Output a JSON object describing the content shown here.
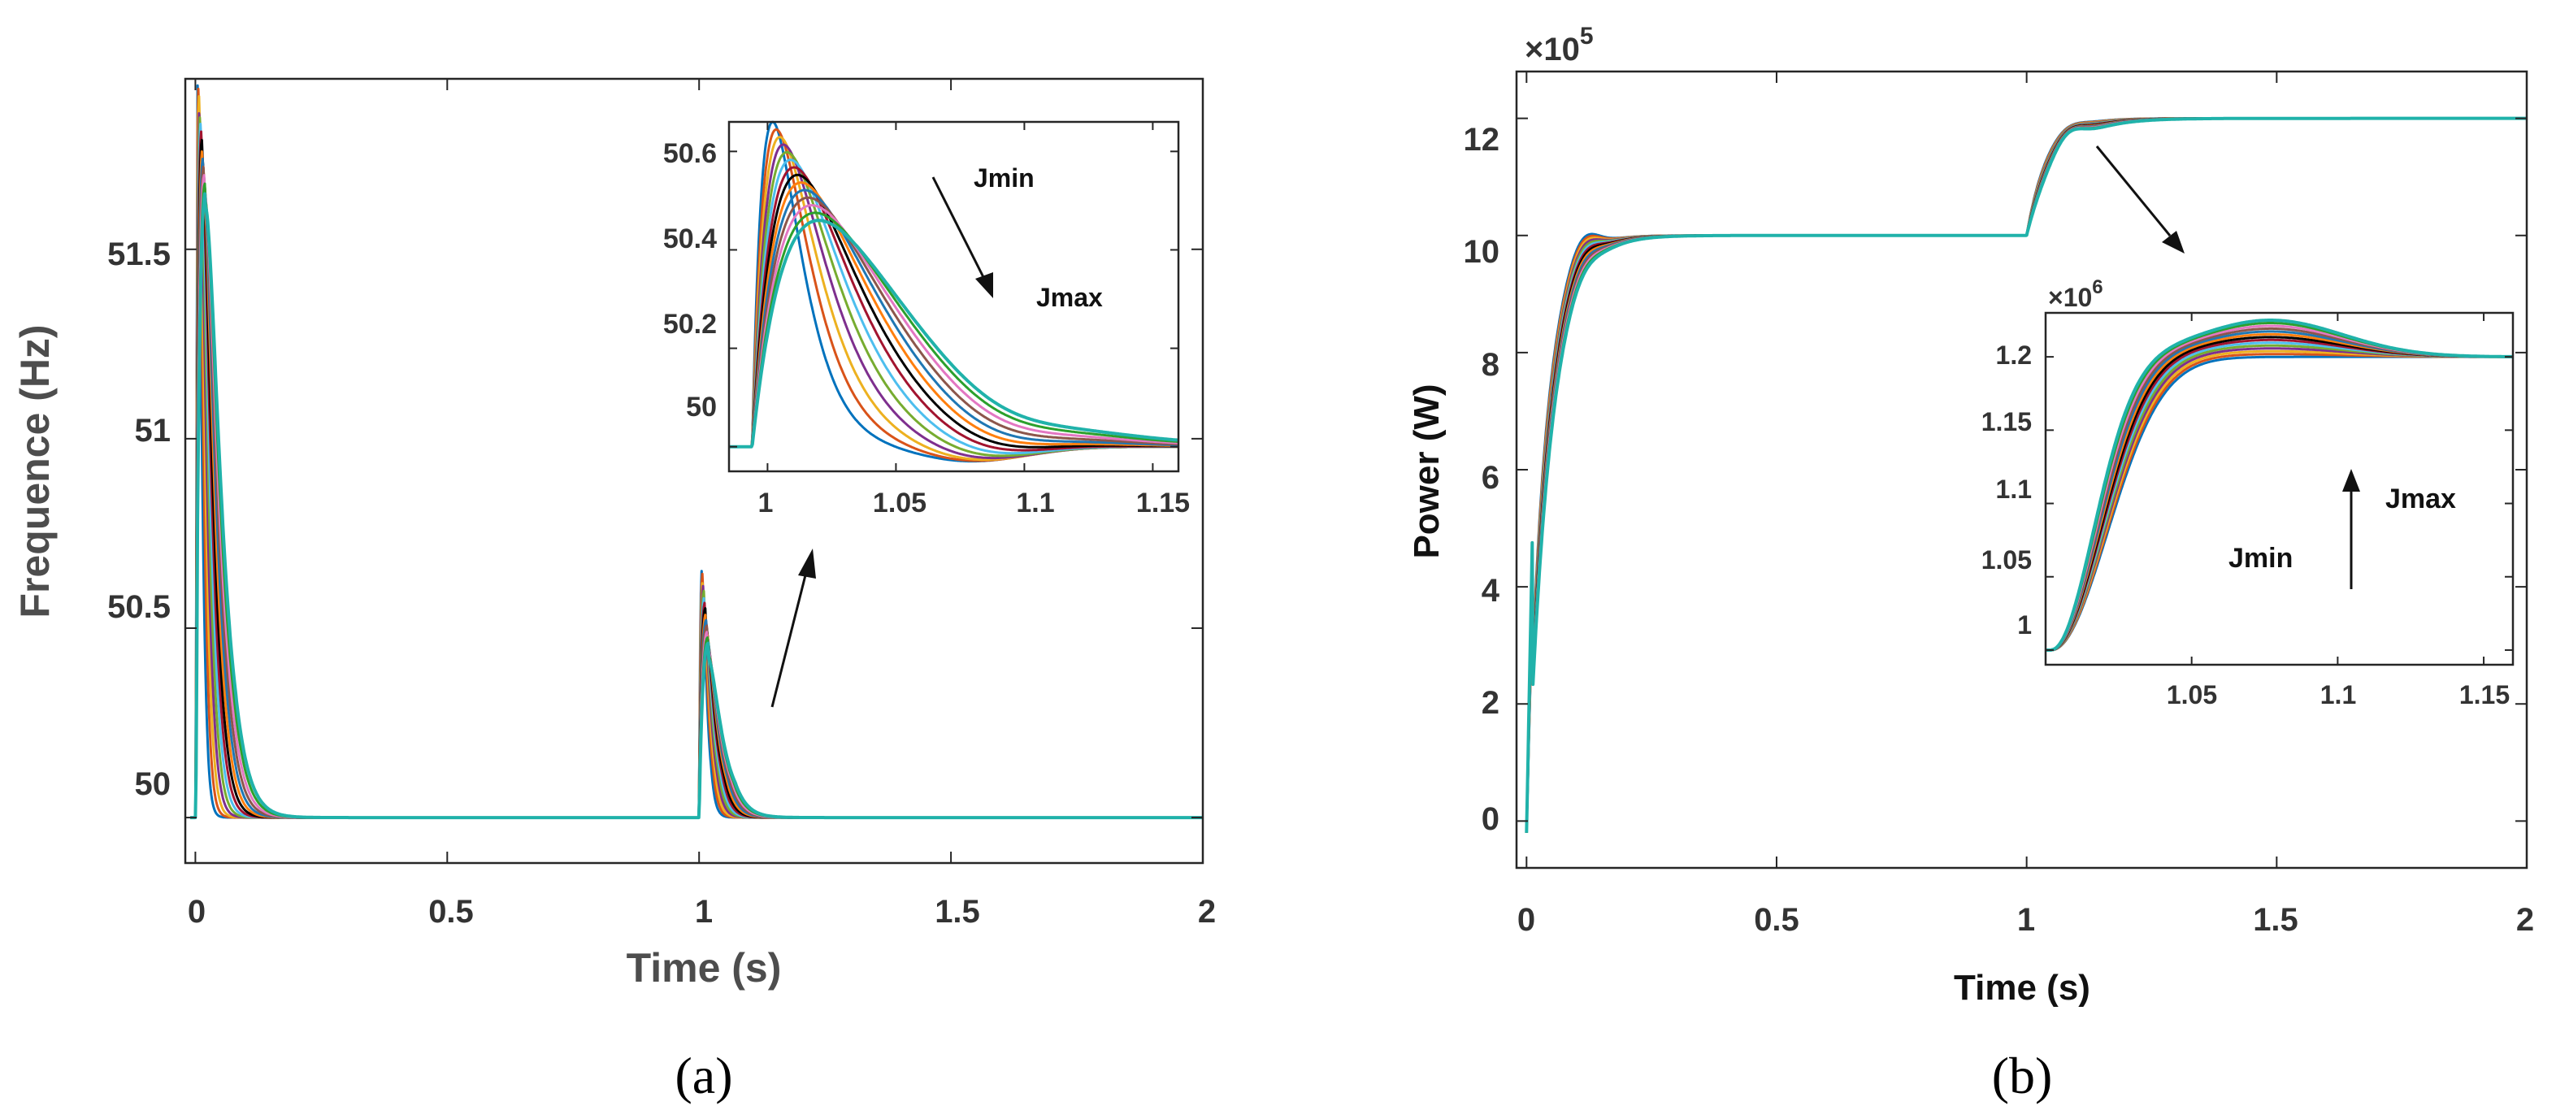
{
  "colors": [
    "#0072bd",
    "#d95319",
    "#edb120",
    "#7e2f8e",
    "#77ac30",
    "#4dbeee",
    "#a2142f",
    "#000000",
    "#ff7f0e",
    "#1f77b4",
    "#8c564b",
    "#e377c2",
    "#2ca02c",
    "#20b2aa"
  ],
  "chart_data": [
    {
      "id": "a",
      "type": "line",
      "panel_label": "(a)",
      "xlabel": "Time (s)",
      "ylabel": "Frequence (Hz)",
      "xlim": [
        -0.02,
        2
      ],
      "ylim": [
        49.88,
        51.95
      ],
      "x_ticks": [
        0,
        0.5,
        1,
        1.5,
        2
      ],
      "x_tick_labels": [
        "0",
        "0.5",
        "1",
        "1.5",
        "2"
      ],
      "y_ticks": [
        50,
        50.5,
        51,
        51.5
      ],
      "y_tick_labels": [
        "50",
        "50.5",
        "51",
        "51.5"
      ],
      "series_count": 14,
      "description_values": {
        "steady_state": 50,
        "first_peak_range": [
          51.65,
          51.95
        ],
        "second_peak_range": [
          50.46,
          50.66
        ],
        "disturbance_times": [
          0,
          1
        ]
      },
      "inset": {
        "xlim": [
          0.985,
          1.16
        ],
        "ylim": [
          49.95,
          50.66
        ],
        "x_ticks": [
          1,
          1.05,
          1.1,
          1.15
        ],
        "x_tick_labels": [
          "1",
          "1.05",
          "1.1",
          "1.15"
        ],
        "y_ticks": [
          50,
          50.2,
          50.4,
          50.6
        ],
        "y_tick_labels": [
          "50",
          "50.2",
          "50.4",
          "50.6"
        ],
        "annotations": [
          "Jmin",
          "Jmax"
        ]
      }
    },
    {
      "id": "b",
      "type": "line",
      "panel_label": "(b)",
      "xlabel": "Time (s)",
      "ylabel": "Power (W)",
      "exponent_label": "×10",
      "exponent_power": "5",
      "xlim": [
        -0.02,
        2
      ],
      "ylim": [
        -0.8,
        12.8
      ],
      "x_ticks": [
        0,
        0.5,
        1,
        1.5,
        2
      ],
      "x_tick_labels": [
        "0",
        "0.5",
        "1",
        "1.5",
        "2"
      ],
      "y_ticks": [
        0,
        2,
        4,
        6,
        8,
        10,
        12
      ],
      "y_tick_labels": [
        "0",
        "2",
        "4",
        "6",
        "8",
        "10",
        "12"
      ],
      "series_count": 14,
      "description_values": {
        "initial_level": 0,
        "first_setpoint": 10,
        "second_setpoint": 12,
        "step_time": 1
      },
      "inset": {
        "xlim": [
          1,
          1.16
        ],
        "ylim": [
          0.99,
          1.23
        ],
        "exponent_label": "×10",
        "exponent_power": "6",
        "x_ticks": [
          1.05,
          1.1,
          1.15
        ],
        "x_tick_labels": [
          "1.05",
          "1.1",
          "1.15"
        ],
        "y_ticks": [
          1,
          1.05,
          1.1,
          1.15,
          1.2
        ],
        "y_tick_labels": [
          "1",
          "1.05",
          "1.1",
          "1.15",
          "1.2"
        ],
        "annotations": [
          "Jmax",
          "Jmin"
        ]
      }
    }
  ]
}
